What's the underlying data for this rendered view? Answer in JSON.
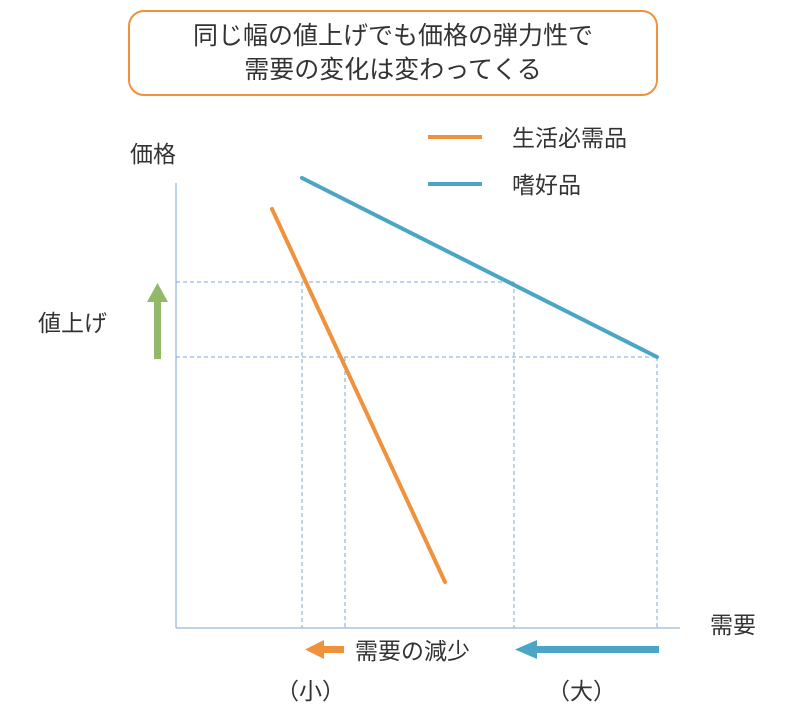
{
  "title": {
    "line1": "同じ幅の値上げでも価格の弾力性で",
    "line2": "需要の変化は変わってくる"
  },
  "axes": {
    "y_label": "価格",
    "x_label": "需要"
  },
  "legend": [
    {
      "label": "生活必需品",
      "color": "#f0913c"
    },
    {
      "label": "嗜好品",
      "color": "#4aa6c4"
    }
  ],
  "annotations": {
    "price_up": "値上げ",
    "demand_decrease": "需要の減少",
    "small": "（小）",
    "large": "（大）"
  },
  "colors": {
    "necessity": "#f0913c",
    "luxury": "#4aa6c4",
    "price_arrow": "#92b96a",
    "guide": "#7ea7d4",
    "axis": "#a9c2de"
  }
}
